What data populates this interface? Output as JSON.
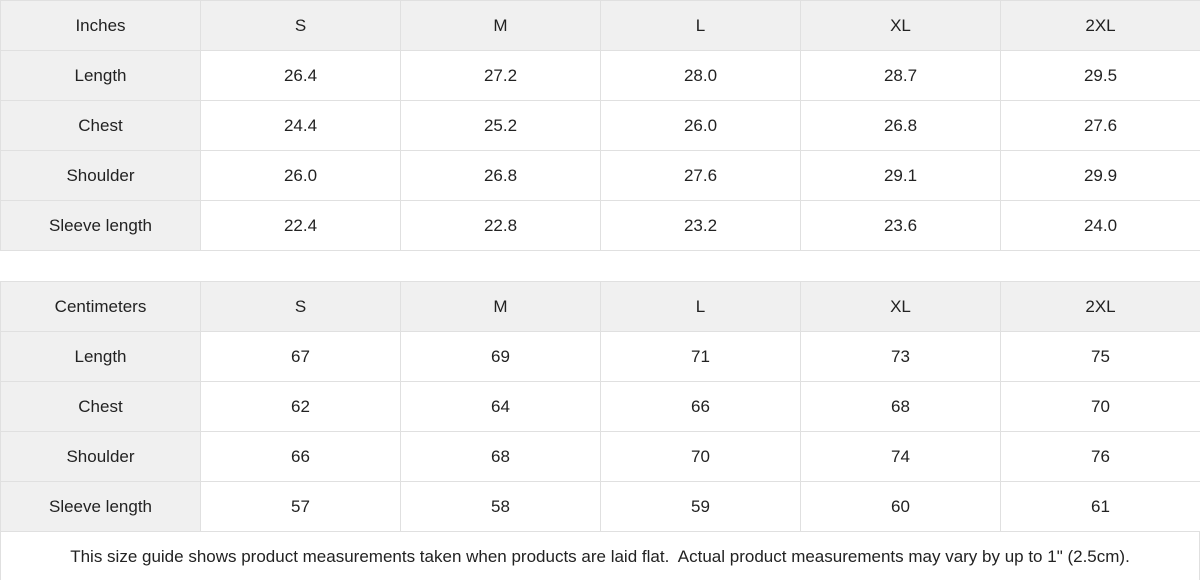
{
  "tables": [
    {
      "unit_label": "Inches",
      "sizes": [
        "S",
        "M",
        "L",
        "XL",
        "2XL"
      ],
      "rows": [
        {
          "label": "Length",
          "values": [
            "26.4",
            "27.2",
            "28.0",
            "28.7",
            "29.5"
          ]
        },
        {
          "label": "Chest",
          "values": [
            "24.4",
            "25.2",
            "26.0",
            "26.8",
            "27.6"
          ]
        },
        {
          "label": "Shoulder",
          "values": [
            "26.0",
            "26.8",
            "27.6",
            "29.1",
            "29.9"
          ]
        },
        {
          "label": "Sleeve length",
          "values": [
            "22.4",
            "22.8",
            "23.2",
            "23.6",
            "24.0"
          ]
        }
      ]
    },
    {
      "unit_label": "Centimeters",
      "sizes": [
        "S",
        "M",
        "L",
        "XL",
        "2XL"
      ],
      "rows": [
        {
          "label": "Length",
          "values": [
            "67",
            "69",
            "71",
            "73",
            "75"
          ]
        },
        {
          "label": "Chest",
          "values": [
            "62",
            "64",
            "66",
            "68",
            "70"
          ]
        },
        {
          "label": "Shoulder",
          "values": [
            "66",
            "68",
            "70",
            "74",
            "76"
          ]
        },
        {
          "label": "Sleeve length",
          "values": [
            "57",
            "58",
            "59",
            "60",
            "61"
          ]
        }
      ]
    }
  ],
  "footer": {
    "note": "This size guide shows product measurements taken when products are laid flat.  Actual product measurements may vary by up to 1\" (2.5cm)."
  },
  "colors": {
    "header_bg": "#f0f0f0",
    "border": "#e0e0e0",
    "text": "#222222",
    "cell_bg": "#ffffff"
  }
}
